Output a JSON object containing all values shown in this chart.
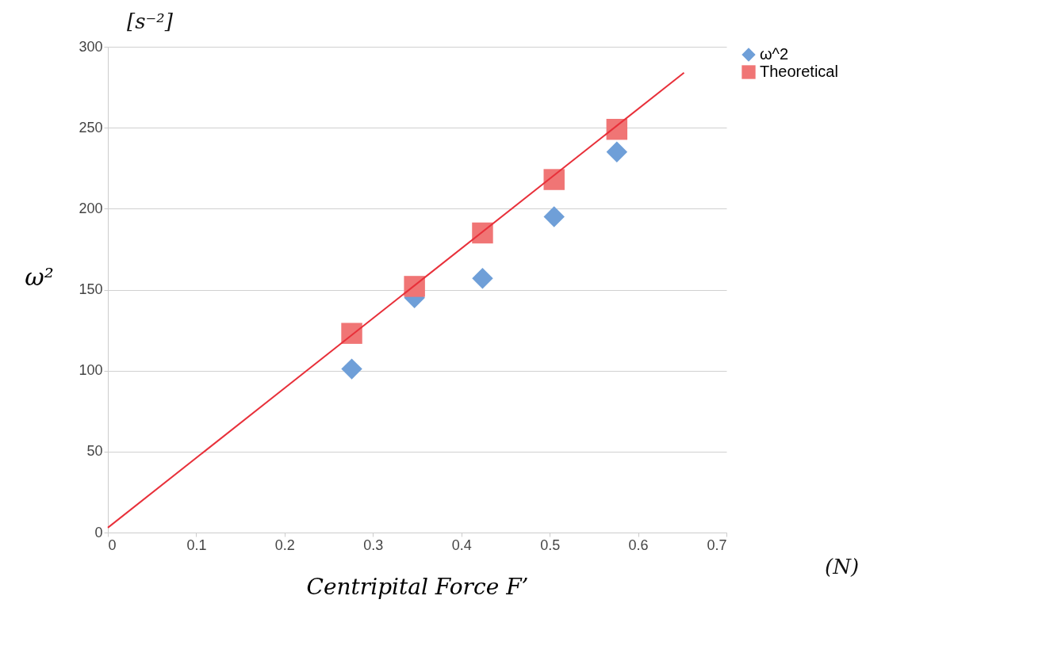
{
  "chart_data": {
    "type": "scatter",
    "xlabel": "Centripital Force F’",
    "ylabel": "ω²",
    "annotations": [
      "[s⁻²]",
      "(N)"
    ],
    "xlim": [
      0,
      0.7
    ],
    "xticks": [
      0,
      0.1,
      0.2,
      0.3,
      0.4,
      0.5,
      0.6,
      0.7
    ],
    "ylim": [
      0,
      300
    ],
    "yticks": [
      0,
      50,
      100,
      150,
      200,
      250,
      300
    ],
    "grid": "y",
    "legend": "right",
    "series": [
      {
        "name": "ω^2",
        "marker": "diamond",
        "color": "#6f9fd8",
        "x": [
          0.276,
          0.347,
          0.424,
          0.505,
          0.576
        ],
        "values": [
          101,
          145,
          157,
          195,
          235
        ]
      },
      {
        "name": "Theoretical",
        "marker": "square",
        "color": "#f07575",
        "x": [
          0.276,
          0.347,
          0.424,
          0.505,
          0.576
        ],
        "values": [
          123,
          152,
          185,
          218,
          249
        ]
      },
      {
        "type": "line",
        "marker": "none",
        "color": "#e8303a",
        "x": [
          0,
          0.652
        ],
        "values": [
          3,
          284
        ]
      }
    ]
  }
}
